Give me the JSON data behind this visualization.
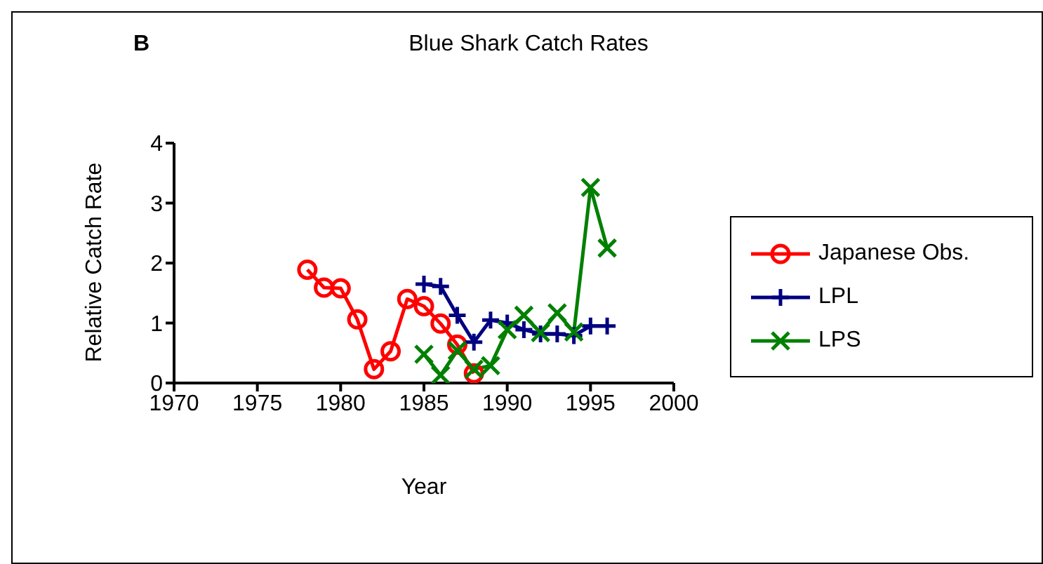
{
  "chart_data": {
    "type": "line",
    "title": "Blue Shark Catch Rates",
    "xlabel": "Year",
    "ylabel": "Relative Catch Rate",
    "annotations": [
      "B"
    ],
    "xlim": [
      1970,
      2000
    ],
    "xticks": [
      1970,
      1975,
      1980,
      1985,
      1990,
      1995,
      2000
    ],
    "ylim": [
      0,
      4
    ],
    "yticks": [
      0,
      1,
      2,
      3,
      4
    ],
    "grid": false,
    "legend": "right",
    "line_style": "solid",
    "series": [
      {
        "name": "Japanese Obs.",
        "color": "#ff0000",
        "marker": "circle",
        "x": [
          1978,
          1979,
          1980,
          1981,
          1982,
          1983,
          1984,
          1985,
          1986,
          1987,
          1988
        ],
        "values": [
          1.89,
          1.59,
          1.58,
          1.06,
          0.23,
          0.53,
          1.4,
          1.28,
          0.99,
          0.64,
          0.16
        ]
      },
      {
        "name": "LPL",
        "color": "#000080",
        "marker": "plus",
        "x": [
          1985,
          1986,
          1987,
          1988,
          1989,
          1990,
          1991,
          1992,
          1993,
          1994,
          1995,
          1996
        ],
        "values": [
          1.65,
          1.61,
          1.13,
          0.68,
          1.05,
          1.0,
          0.89,
          0.82,
          0.82,
          0.79,
          0.95,
          0.95
        ]
      },
      {
        "name": "LPS",
        "color": "#008000",
        "marker": "cross",
        "x": [
          1985,
          1986,
          1987,
          1988,
          1989,
          1990,
          1991,
          1992,
          1993,
          1994,
          1995,
          1996
        ],
        "values": [
          0.48,
          0.13,
          0.54,
          0.23,
          0.29,
          0.89,
          1.13,
          0.84,
          1.17,
          0.85,
          3.26,
          2.25
        ]
      }
    ]
  }
}
